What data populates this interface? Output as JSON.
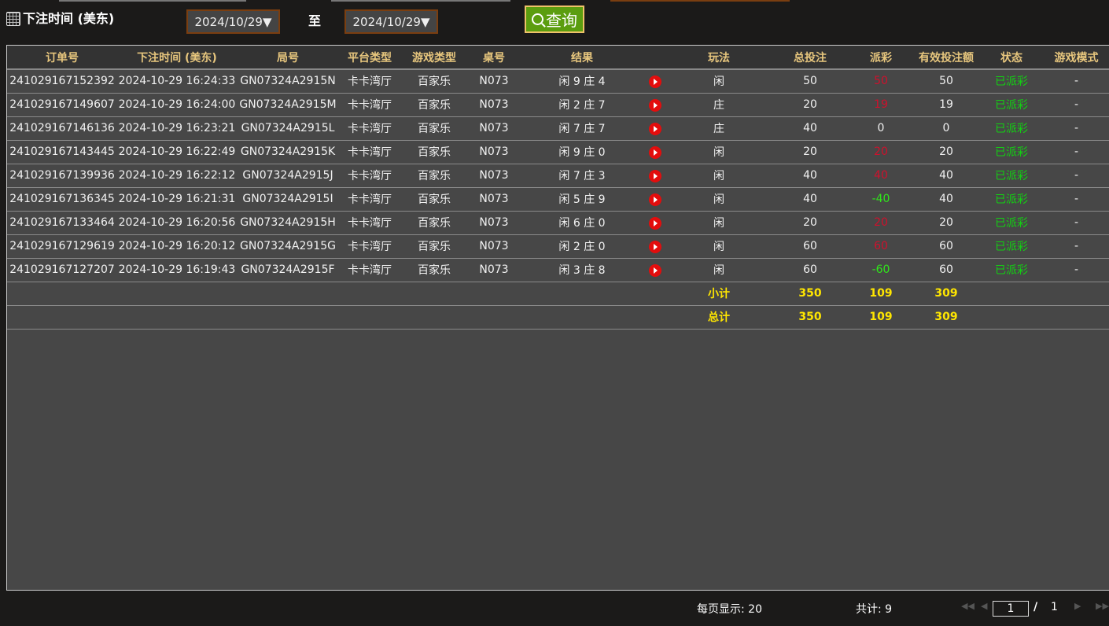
{
  "filter": {
    "label": "下注时间 (美东)",
    "start_date": "2024/10/29",
    "to_label": "至",
    "end_date": "2024/10/29",
    "query_label": "查询"
  },
  "columns": [
    "订单号",
    "下注时间 (美东)",
    "局号",
    "平台类型",
    "游戏类型",
    "桌号",
    "结果",
    "",
    "玩法",
    "总投注",
    "派彩",
    "有效投注额",
    "状态",
    "游戏模式"
  ],
  "rows": [
    {
      "order": "241029167152392",
      "time": "2024-10-29 16:24:33",
      "round": "GN07324A2915N",
      "platform": "卡卡湾厅",
      "game": "百家乐",
      "table": "N073",
      "result": "闲 9 庄 4",
      "bet_type": "闲",
      "total": "50",
      "payout": "50",
      "payout_color": "red",
      "valid": "50",
      "status": "已派彩",
      "mode": "-"
    },
    {
      "order": "241029167149607",
      "time": "2024-10-29 16:24:00",
      "round": "GN07324A2915M",
      "platform": "卡卡湾厅",
      "game": "百家乐",
      "table": "N073",
      "result": "闲 2 庄 7",
      "bet_type": "庄",
      "total": "20",
      "payout": "19",
      "payout_color": "red",
      "valid": "19",
      "status": "已派彩",
      "mode": "-"
    },
    {
      "order": "241029167146136",
      "time": "2024-10-29 16:23:21",
      "round": "GN07324A2915L",
      "platform": "卡卡湾厅",
      "game": "百家乐",
      "table": "N073",
      "result": "闲 7 庄 7",
      "bet_type": "庄",
      "total": "40",
      "payout": "0",
      "payout_color": "white",
      "valid": "0",
      "status": "已派彩",
      "mode": "-"
    },
    {
      "order": "241029167143445",
      "time": "2024-10-29 16:22:49",
      "round": "GN07324A2915K",
      "platform": "卡卡湾厅",
      "game": "百家乐",
      "table": "N073",
      "result": "闲 9 庄 0",
      "bet_type": "闲",
      "total": "20",
      "payout": "20",
      "payout_color": "red",
      "valid": "20",
      "status": "已派彩",
      "mode": "-"
    },
    {
      "order": "241029167139936",
      "time": "2024-10-29 16:22:12",
      "round": "GN07324A2915J",
      "platform": "卡卡湾厅",
      "game": "百家乐",
      "table": "N073",
      "result": "闲 7 庄 3",
      "bet_type": "闲",
      "total": "40",
      "payout": "40",
      "payout_color": "red",
      "valid": "40",
      "status": "已派彩",
      "mode": "-"
    },
    {
      "order": "241029167136345",
      "time": "2024-10-29 16:21:31",
      "round": "GN07324A2915I",
      "platform": "卡卡湾厅",
      "game": "百家乐",
      "table": "N073",
      "result": "闲 5 庄 9",
      "bet_type": "闲",
      "total": "40",
      "payout": "-40",
      "payout_color": "green",
      "valid": "40",
      "status": "已派彩",
      "mode": "-"
    },
    {
      "order": "241029167133464",
      "time": "2024-10-29 16:20:56",
      "round": "GN07324A2915H",
      "platform": "卡卡湾厅",
      "game": "百家乐",
      "table": "N073",
      "result": "闲 6 庄 0",
      "bet_type": "闲",
      "total": "20",
      "payout": "20",
      "payout_color": "red",
      "valid": "20",
      "status": "已派彩",
      "mode": "-"
    },
    {
      "order": "241029167129619",
      "time": "2024-10-29 16:20:12",
      "round": "GN07324A2915G",
      "platform": "卡卡湾厅",
      "game": "百家乐",
      "table": "N073",
      "result": "闲 2 庄 0",
      "bet_type": "闲",
      "total": "60",
      "payout": "60",
      "payout_color": "red",
      "valid": "60",
      "status": "已派彩",
      "mode": "-"
    },
    {
      "order": "241029167127207",
      "time": "2024-10-29 16:19:43",
      "round": "GN07324A2915F",
      "platform": "卡卡湾厅",
      "game": "百家乐",
      "table": "N073",
      "result": "闲 3 庄 8",
      "bet_type": "闲",
      "total": "60",
      "payout": "-60",
      "payout_color": "green",
      "valid": "60",
      "status": "已派彩",
      "mode": "-"
    }
  ],
  "subtotal": {
    "label": "小计",
    "total": "350",
    "payout": "109",
    "valid": "309"
  },
  "grand_total": {
    "label": "总计",
    "total": "350",
    "payout": "109",
    "valid": "309"
  },
  "footer": {
    "page_size": "每页显示: 20",
    "count": "共计: 9",
    "page": "1",
    "separator": "/",
    "pages": "1"
  },
  "colors": {
    "header_text": "#e8c77e",
    "payout_positive": "#d0102c",
    "payout_negative": "#2fe61a",
    "status": "#12d112",
    "totals": "#ffe600",
    "query_button": "#5b9d0f"
  }
}
